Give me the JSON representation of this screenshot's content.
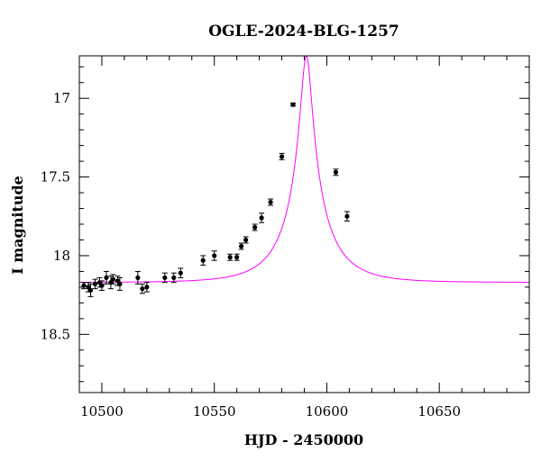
{
  "chart_data": {
    "type": "scatter",
    "title": "OGLE-2024-BLG-1257",
    "xlabel": "HJD - 2450000",
    "ylabel": "I magnitude",
    "xlim": [
      10490,
      10690
    ],
    "ylim": [
      18.87,
      16.73
    ],
    "y_inverted": true,
    "x_ticks": [
      10500,
      10550,
      10600,
      10650
    ],
    "x_tick_labels": [
      "10500",
      "10550",
      "10600",
      "10650"
    ],
    "y_ticks": [
      17,
      17.5,
      18,
      18.5
    ],
    "y_tick_labels": [
      "17",
      "17.5",
      "18",
      "18.5"
    ],
    "grid": false,
    "colors": {
      "model": "#ff00ff",
      "points": "#000000",
      "axes": "#000000"
    },
    "series": [
      {
        "type": "scatter_errorbar",
        "points": [
          {
            "x": 10492,
            "y": 18.19,
            "err": 0.02
          },
          {
            "x": 10494,
            "y": 18.2,
            "err": 0.03
          },
          {
            "x": 10495,
            "y": 18.22,
            "err": 0.04
          },
          {
            "x": 10497,
            "y": 18.18,
            "err": 0.03
          },
          {
            "x": 10499,
            "y": 18.17,
            "err": 0.03
          },
          {
            "x": 10500,
            "y": 18.19,
            "err": 0.03
          },
          {
            "x": 10502,
            "y": 18.14,
            "err": 0.04
          },
          {
            "x": 10504,
            "y": 18.17,
            "err": 0.04
          },
          {
            "x": 10505,
            "y": 18.15,
            "err": 0.03
          },
          {
            "x": 10507,
            "y": 18.16,
            "err": 0.03
          },
          {
            "x": 10508,
            "y": 18.18,
            "err": 0.04
          },
          {
            "x": 10516,
            "y": 18.14,
            "err": 0.04
          },
          {
            "x": 10518,
            "y": 18.21,
            "err": 0.03
          },
          {
            "x": 10520,
            "y": 18.2,
            "err": 0.03
          },
          {
            "x": 10528,
            "y": 18.14,
            "err": 0.03
          },
          {
            "x": 10532,
            "y": 18.14,
            "err": 0.03
          },
          {
            "x": 10535,
            "y": 18.11,
            "err": 0.03
          },
          {
            "x": 10545,
            "y": 18.03,
            "err": 0.03
          },
          {
            "x": 10550,
            "y": 18.0,
            "err": 0.03
          },
          {
            "x": 10557,
            "y": 18.01,
            "err": 0.02
          },
          {
            "x": 10560,
            "y": 18.01,
            "err": 0.02
          },
          {
            "x": 10562,
            "y": 17.94,
            "err": 0.02
          },
          {
            "x": 10564,
            "y": 17.9,
            "err": 0.02
          },
          {
            "x": 10568,
            "y": 17.82,
            "err": 0.02
          },
          {
            "x": 10571,
            "y": 17.76,
            "err": 0.03
          },
          {
            "x": 10575,
            "y": 17.66,
            "err": 0.02
          },
          {
            "x": 10580,
            "y": 17.37,
            "err": 0.02
          },
          {
            "x": 10585,
            "y": 17.04,
            "err": 0.01
          },
          {
            "x": 10604,
            "y": 17.47,
            "err": 0.02
          },
          {
            "x": 10609,
            "y": 17.75,
            "err": 0.03
          }
        ]
      },
      {
        "type": "model_curve",
        "model": {
          "t0": 10590.9,
          "tE": 20.0,
          "u0": 0.12,
          "baseline_mag": 18.17,
          "peak_mag": 16.73
        }
      }
    ]
  }
}
